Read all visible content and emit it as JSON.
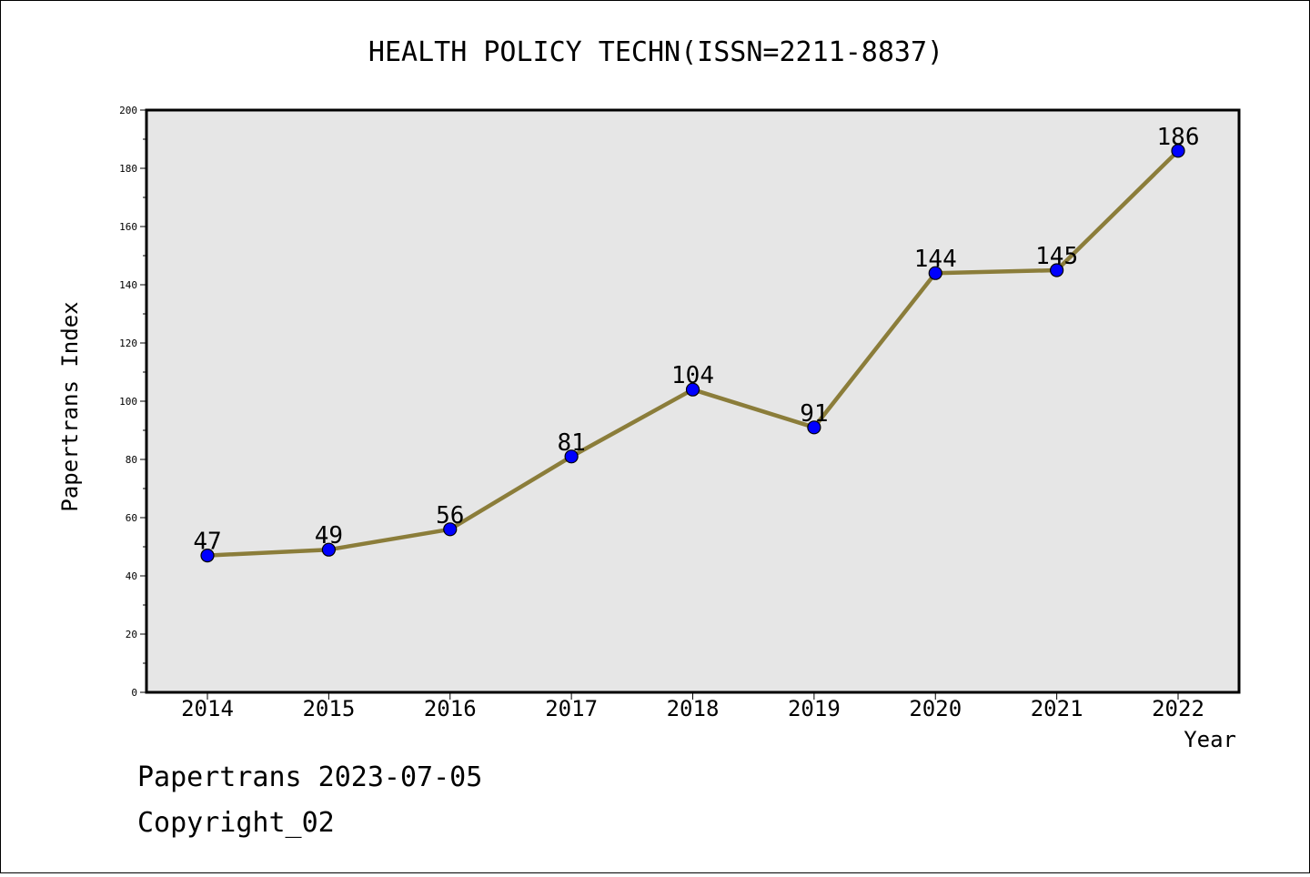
{
  "chart_data": {
    "type": "line",
    "title": "HEALTH POLICY TECHN(ISSN=2211-8837)",
    "xlabel": "Year",
    "ylabel": "Papertrans Index",
    "categories": [
      "2014",
      "2015",
      "2016",
      "2017",
      "2018",
      "2019",
      "2020",
      "2021",
      "2022"
    ],
    "series": [
      {
        "values": [
          47,
          49,
          56,
          81,
          104,
          91,
          144,
          145,
          186
        ]
      }
    ],
    "ylim": [
      0,
      200
    ],
    "y_ticks": [
      0,
      20,
      40,
      60,
      80,
      100,
      120,
      140,
      160,
      180,
      200
    ],
    "grid": false,
    "legend": "none",
    "colors": {
      "line": "#8B7D3A",
      "marker": "#0000FF",
      "plot_background": "#E6E6E6"
    }
  },
  "footer": {
    "date_line": "Papertrans 2023-07-05",
    "copyright": "Copyright_02"
  }
}
